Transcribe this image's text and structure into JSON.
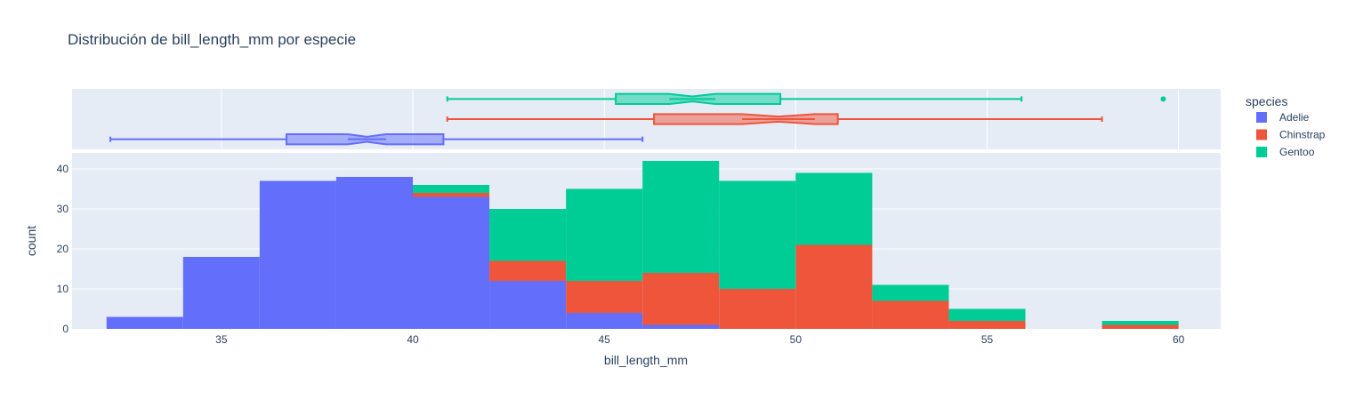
{
  "chart_data": {
    "type": "histogram",
    "title": "Distribución de bill_length_mm por especie",
    "xlabel": "bill_length_mm",
    "ylabel": "count",
    "xlim": [
      31.1,
      61.1
    ],
    "ylim": [
      0,
      44
    ],
    "x_ticks": [
      35,
      40,
      45,
      50,
      55,
      60
    ],
    "y_ticks": [
      0,
      10,
      20,
      30,
      40
    ],
    "barmode": "stack",
    "grid": true,
    "bins": [
      [
        32,
        34
      ],
      [
        34,
        36
      ],
      [
        36,
        38
      ],
      [
        38,
        40
      ],
      [
        40,
        42
      ],
      [
        42,
        44
      ],
      [
        44,
        46
      ],
      [
        46,
        48
      ],
      [
        48,
        50
      ],
      [
        50,
        52
      ],
      [
        52,
        54
      ],
      [
        54,
        56
      ],
      [
        56,
        58
      ],
      [
        58,
        60
      ]
    ],
    "series": [
      {
        "name": "Adelie",
        "color": "#636efa",
        "values": [
          3,
          18,
          37,
          38,
          33,
          12,
          4,
          1,
          0,
          0,
          0,
          0,
          0,
          0
        ]
      },
      {
        "name": "Chinstrap",
        "color": "#ef553b",
        "values": [
          0,
          0,
          0,
          0,
          1,
          5,
          8,
          13,
          10,
          21,
          7,
          2,
          0,
          1
        ]
      },
      {
        "name": "Gentoo",
        "color": "#00cc96",
        "values": [
          0,
          0,
          0,
          0,
          2,
          13,
          23,
          28,
          27,
          18,
          4,
          3,
          0,
          1
        ]
      }
    ],
    "legend": {
      "title": "species",
      "placement": "right"
    },
    "marginal_box": {
      "notched": true,
      "boxes": [
        {
          "name": "Adelie",
          "color": "#636efa",
          "min": 32.1,
          "q1": 36.7,
          "median": 38.8,
          "q3": 40.8,
          "max": 46.0,
          "notch_low": 38.3,
          "notch_high": 39.3,
          "outliers": []
        },
        {
          "name": "Chinstrap",
          "color": "#ef553b",
          "min": 40.9,
          "q1": 46.3,
          "median": 49.55,
          "q3": 51.1,
          "max": 58.0,
          "notch_low": 48.6,
          "notch_high": 50.5,
          "outliers": []
        },
        {
          "name": "Gentoo",
          "color": "#00cc96",
          "min": 40.9,
          "q1": 45.3,
          "median": 47.3,
          "q3": 49.6,
          "max": 55.9,
          "notch_low": 46.7,
          "notch_high": 47.9,
          "outliers": [
            59.6
          ]
        }
      ]
    }
  }
}
